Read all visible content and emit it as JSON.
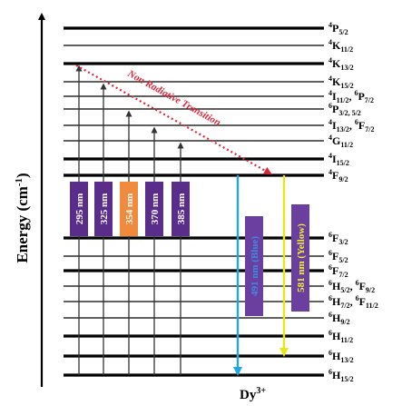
{
  "axis": {
    "title": "Energy (cm",
    "title_sup": "-1",
    "title_tail": ")"
  },
  "ion": {
    "base": "Dy",
    "sup": "3+"
  },
  "levels": [
    {
      "id": "4P5/2",
      "parts": [
        [
          "sup",
          "4"
        ],
        [
          "n",
          "P"
        ],
        [
          "sub",
          "5/2"
        ]
      ],
      "thick": true
    },
    {
      "id": "4K11/2",
      "parts": [
        [
          "sup",
          "4"
        ],
        [
          "n",
          "K"
        ],
        [
          "sub",
          "11/2"
        ]
      ],
      "thick": false
    },
    {
      "id": "4K13/2",
      "parts": [
        [
          "sup",
          "4"
        ],
        [
          "n",
          "K"
        ],
        [
          "sub",
          "13/2"
        ]
      ],
      "thick": true
    },
    {
      "id": "4K15/2",
      "parts": [
        [
          "sup",
          "4"
        ],
        [
          "n",
          "K"
        ],
        [
          "sub",
          "15/2"
        ]
      ],
      "thick": false
    },
    {
      "id": "4I11/2,6P7/2",
      "parts": [
        [
          "sup",
          "4"
        ],
        [
          "n",
          "I"
        ],
        [
          "sub",
          "11/2"
        ],
        [
          "n",
          ", "
        ],
        [
          "sup",
          "6"
        ],
        [
          "n",
          "P"
        ],
        [
          "sub",
          "7/2"
        ]
      ],
      "thick": false
    },
    {
      "id": "6P3/2,5/2",
      "parts": [
        [
          "sup",
          "6"
        ],
        [
          "n",
          "P"
        ],
        [
          "sub",
          "3/2, 5/2"
        ]
      ],
      "thick": false
    },
    {
      "id": "4I13/2,6F7/2",
      "parts": [
        [
          "sup",
          "4"
        ],
        [
          "n",
          "I"
        ],
        [
          "sub",
          "13/2"
        ],
        [
          "n",
          ", "
        ],
        [
          "sup",
          "6"
        ],
        [
          "n",
          "F"
        ],
        [
          "sub",
          "7/2"
        ]
      ],
      "thick": false
    },
    {
      "id": "4G11/2",
      "parts": [
        [
          "sup",
          "4"
        ],
        [
          "n",
          "G"
        ],
        [
          "sub",
          "11/2"
        ]
      ],
      "thick": false
    },
    {
      "id": "4I15/2",
      "parts": [
        [
          "sup",
          "4"
        ],
        [
          "n",
          "I"
        ],
        [
          "sub",
          "15/2"
        ]
      ],
      "thick": true
    },
    {
      "id": "4F9/2",
      "parts": [
        [
          "sup",
          "4"
        ],
        [
          "n",
          "F"
        ],
        [
          "sub",
          "9/2"
        ]
      ],
      "thick": true
    },
    {
      "id": "6F3/2",
      "parts": [
        [
          "sup",
          "6"
        ],
        [
          "n",
          "F"
        ],
        [
          "sub",
          "3/2"
        ]
      ],
      "thick": true
    },
    {
      "id": "6F5/2",
      "parts": [
        [
          "sup",
          "6"
        ],
        [
          "n",
          "F"
        ],
        [
          "sub",
          "5/2"
        ]
      ],
      "thick": false
    },
    {
      "id": "6F7/2",
      "parts": [
        [
          "sup",
          "6"
        ],
        [
          "n",
          "F"
        ],
        [
          "sub",
          "7/2"
        ]
      ],
      "thick": true
    },
    {
      "id": "6H5/2,6F9/2",
      "parts": [
        [
          "sup",
          "6"
        ],
        [
          "n",
          "H"
        ],
        [
          "sub",
          "5/2"
        ],
        [
          "n",
          ", "
        ],
        [
          "sup",
          "6"
        ],
        [
          "n",
          "F"
        ],
        [
          "sub",
          "9/2"
        ]
      ],
      "thick": false
    },
    {
      "id": "6H7/2,6F11/2",
      "parts": [
        [
          "sup",
          "6"
        ],
        [
          "n",
          "H"
        ],
        [
          "sub",
          "7/2"
        ],
        [
          "n",
          ", "
        ],
        [
          "sup",
          "6"
        ],
        [
          "n",
          "F"
        ],
        [
          "sub",
          "11/2"
        ]
      ],
      "thick": false
    },
    {
      "id": "6H9/2",
      "parts": [
        [
          "sup",
          "6"
        ],
        [
          "n",
          "H"
        ],
        [
          "sub",
          "9/2"
        ]
      ],
      "thick": false
    },
    {
      "id": "6H11/2",
      "parts": [
        [
          "sup",
          "6"
        ],
        [
          "n",
          "H"
        ],
        [
          "sub",
          "11/2"
        ]
      ],
      "thick": true
    },
    {
      "id": "6H13/2",
      "parts": [
        [
          "sup",
          "6"
        ],
        [
          "n",
          "H"
        ],
        [
          "sub",
          "13/2"
        ]
      ],
      "thick": true
    },
    {
      "id": "6H15/2",
      "parts": [
        [
          "sup",
          "6"
        ],
        [
          "n",
          "H"
        ],
        [
          "sub",
          "15/2"
        ]
      ],
      "thick": true
    }
  ],
  "excitations": [
    {
      "label": "295 nm",
      "color": "#5a2d8a",
      "target": "4K13/2"
    },
    {
      "label": "325 nm",
      "color": "#5a2d8a",
      "target": "4K15/2"
    },
    {
      "label": "354 nm",
      "color": "#f08a3c",
      "target": "6P3/2,5/2"
    },
    {
      "label": "370 nm",
      "color": "#5a2d8a",
      "target": "4I13/2,6F7/2"
    },
    {
      "label": "385 nm",
      "color": "#5a2d8a",
      "target": "4G11/2"
    }
  ],
  "emissions": [
    {
      "label": "491 nm (Blue)",
      "arrow_color": "#1ea7e0",
      "box_color": "#6a3fa0",
      "target": "6H15/2"
    },
    {
      "label": "581 nm (Yellow)",
      "arrow_color": "#e6e61c",
      "box_color": "#6a3fa0",
      "target": "6H13/2"
    }
  ],
  "non_radiative": {
    "label": "Non Radiative Transition",
    "color": "#d9283a"
  }
}
